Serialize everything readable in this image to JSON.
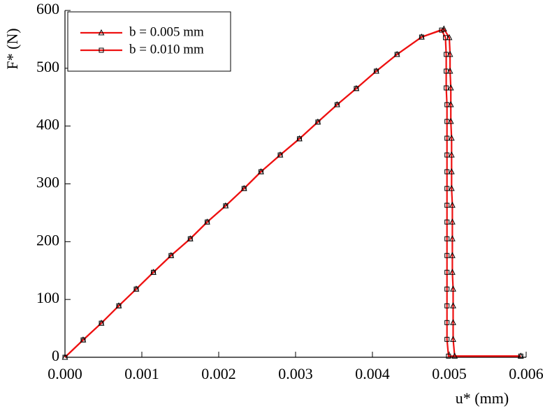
{
  "chart_data": {
    "type": "line",
    "xlabel": "u* (mm)",
    "ylabel": "F* (N)",
    "xlim": [
      0,
      0.006
    ],
    "ylim": [
      0,
      600
    ],
    "xticks": [
      {
        "value": 0,
        "label": "0.000"
      },
      0.001,
      0.002,
      0.003,
      0.004,
      0.005,
      0.006
    ],
    "yticks": [
      0,
      100,
      200,
      300,
      400,
      500,
      600
    ],
    "legend": "upper-left",
    "series": [
      {
        "name": "b = 0.005 mm",
        "color": "#ee1111",
        "marker": "triangle",
        "x": [
          0,
          0.000236,
          0.000473,
          0.0007,
          0.000927,
          0.00115,
          0.00138,
          0.00163,
          0.00185,
          0.00209,
          0.00233,
          0.00255,
          0.0028,
          0.00305,
          0.00329,
          0.00354,
          0.00379,
          0.00405,
          0.00432,
          0.00464,
          0.00493,
          0.005,
          0.00501,
          0.00501,
          0.00502,
          0.00502,
          0.00502,
          0.00503,
          0.00503,
          0.00503,
          0.00503,
          0.00504,
          0.00504,
          0.00504,
          0.00504,
          0.00504,
          0.00505,
          0.00505,
          0.00505,
          0.00505,
          0.00507,
          0.00593
        ],
        "values": [
          0,
          30,
          59,
          89,
          118,
          147,
          176,
          205,
          234,
          262,
          292,
          321,
          350,
          378,
          407,
          437,
          465,
          495,
          524,
          554,
          568,
          553,
          524,
          495,
          466,
          437,
          408,
          379,
          350,
          321,
          292,
          263,
          234,
          205,
          176,
          147,
          118,
          89,
          60,
          31,
          2,
          2
        ]
      },
      {
        "name": "b = 0.010 mm",
        "color": "#ee1111",
        "marker": "square",
        "x": [
          0,
          0.000236,
          0.000473,
          0.0007,
          0.000927,
          0.00115,
          0.00138,
          0.00163,
          0.00185,
          0.00209,
          0.00233,
          0.00255,
          0.0028,
          0.00305,
          0.00329,
          0.00354,
          0.00379,
          0.00405,
          0.00432,
          0.00464,
          0.0049,
          0.00495,
          0.00496,
          0.00496,
          0.00496,
          0.00497,
          0.00497,
          0.00497,
          0.00497,
          0.00497,
          0.00497,
          0.00497,
          0.00497,
          0.00497,
          0.00497,
          0.00497,
          0.00497,
          0.00497,
          0.00497,
          0.00497,
          0.00499,
          0.00593
        ],
        "values": [
          0,
          30,
          59,
          89,
          118,
          147,
          176,
          205,
          234,
          262,
          292,
          321,
          350,
          378,
          407,
          437,
          465,
          495,
          524,
          554,
          566,
          553,
          524,
          495,
          466,
          437,
          408,
          379,
          350,
          321,
          292,
          263,
          234,
          205,
          176,
          147,
          118,
          89,
          60,
          31,
          2,
          2
        ]
      }
    ]
  }
}
